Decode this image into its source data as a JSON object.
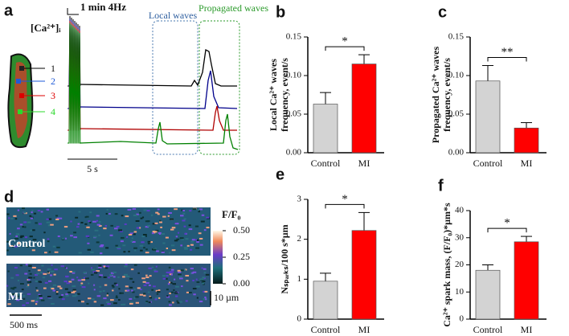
{
  "panel_a": {
    "label": "a",
    "stimulus": "1 min 4Hz",
    "ca_label": "[Ca²⁺]ᵢ",
    "box_labels": [
      "Local waves",
      "Propagated waves"
    ],
    "cell_labels": [
      "1",
      "2",
      "3",
      "4"
    ],
    "scale_bar": "5 s"
  },
  "panel_d": {
    "label": "d",
    "image_labels": [
      "Control",
      "MI"
    ],
    "colorbar_title": "F/F₀",
    "colorbar_lim": [
      0,
      0.5
    ],
    "colorbar_ticks": [
      {
        "value": 0.5,
        "label": "0.50"
      },
      {
        "value": 0.25,
        "label": "0.25"
      },
      {
        "value": 0,
        "label": "0.00"
      }
    ],
    "time_scale": "500 ms",
    "space_scale": "10 µm"
  },
  "chart_data": [
    {
      "type": "bar",
      "panel": "b",
      "ylabel": [
        "Local Ca²⁺ waves",
        "frequency, event/s"
      ],
      "categories": [
        "Control",
        "MI"
      ],
      "values": [
        0.063,
        0.115
      ],
      "errors": [
        0.015,
        0.012
      ],
      "colors": [
        "#d3d3d3",
        "#ff0000"
      ],
      "ylim": [
        0,
        0.15
      ],
      "yticks": [
        {
          "value": 0,
          "label": "0.00"
        },
        {
          "value": 0.05,
          "label": "0.05"
        },
        {
          "value": 0.1,
          "label": "0.10"
        },
        {
          "value": 0.15,
          "label": "0.15"
        }
      ],
      "significance": "*"
    },
    {
      "type": "bar",
      "panel": "c",
      "ylabel": [
        "Propagated Ca²⁺ waves",
        "frequency, event/s"
      ],
      "categories": [
        "Control",
        "MI"
      ],
      "values": [
        0.093,
        0.032
      ],
      "errors": [
        0.02,
        0.007
      ],
      "colors": [
        "#d3d3d3",
        "#ff0000"
      ],
      "ylim": [
        0,
        0.15
      ],
      "yticks": [
        {
          "value": 0,
          "label": "0.00"
        },
        {
          "value": 0.05,
          "label": "0.05"
        },
        {
          "value": 0.1,
          "label": "0.10"
        },
        {
          "value": 0.15,
          "label": "0.15"
        }
      ],
      "significance": "**"
    },
    {
      "type": "bar",
      "panel": "e",
      "ylabel": [
        "Nₛₚₐᵣₖₛ/100 s*µm"
      ],
      "categories": [
        "Control",
        "MI"
      ],
      "values": [
        0.95,
        2.22
      ],
      "errors": [
        0.2,
        0.45
      ],
      "colors": [
        "#d3d3d3",
        "#ff0000"
      ],
      "ylim": [
        0,
        3
      ],
      "yticks": [
        0,
        1,
        2,
        3
      ],
      "significance": "*"
    },
    {
      "type": "bar",
      "panel": "f",
      "ylabel": [
        "Ca²⁺ spark mass, (F/F₀)*µm*s"
      ],
      "categories": [
        "Control",
        "MI"
      ],
      "values": [
        18,
        28.5
      ],
      "errors": [
        2,
        2
      ],
      "colors": [
        "#d3d3d3",
        "#ff0000"
      ],
      "ylim": [
        0,
        40
      ],
      "yticks": [
        0,
        10,
        20,
        30,
        40
      ],
      "significance": "*"
    }
  ]
}
